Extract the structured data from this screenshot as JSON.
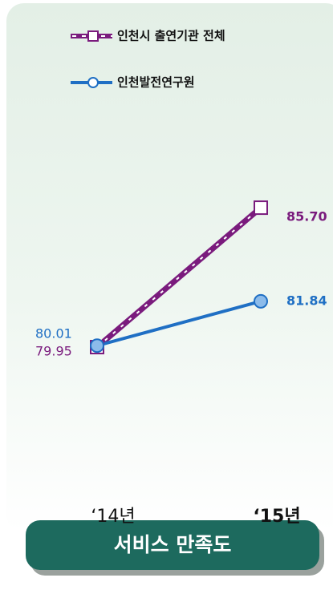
{
  "chart_data": {
    "type": "line",
    "categories": [
      "‘14년",
      "‘15년"
    ],
    "series": [
      {
        "name": "인천시 출연기관 전체",
        "color": "#7a1b7d",
        "values": [
          79.95,
          85.7
        ],
        "value_labels": [
          "79.95",
          "85.70"
        ]
      },
      {
        "name": "인천발전연구원",
        "color": "#1f6fc4",
        "values": [
          80.01,
          81.84
        ],
        "value_labels": [
          "80.01",
          "81.84"
        ]
      }
    ],
    "ylim": [
      74,
      94
    ],
    "xlabel": "서비스 만족도"
  }
}
